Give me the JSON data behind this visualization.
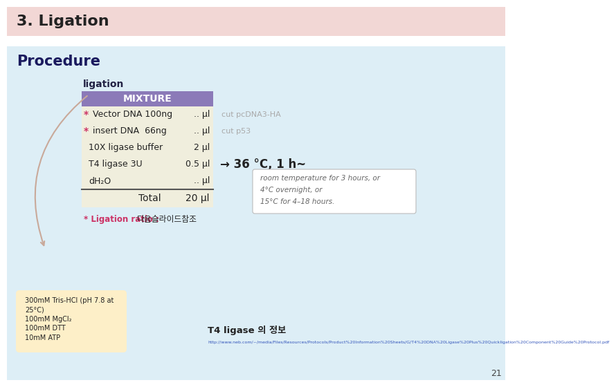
{
  "title": "3. Ligation",
  "title_bg": "#f2d7d5",
  "slide_bg": "#cfe0ed",
  "content_bg": "#ddeef6",
  "section_title": "Procedure",
  "ligation_label": "ligation",
  "mixture_header": "MIXTURE",
  "mixture_header_bg": "#8b7ab8",
  "mixture_header_color": "#ffffff",
  "table_bg": "#f0eedd",
  "table_rows": [
    [
      "* Vector DNA 100ng",
      ".. μl"
    ],
    [
      "* insert DNA  66ng",
      ".. μl"
    ],
    [
      "10X ligase buffer",
      "2 μl"
    ],
    [
      "T4 ligase 3U",
      "0.5 μl"
    ],
    [
      "dH₂O",
      ".. μl"
    ]
  ],
  "total_label": "Total",
  "total_value": "20 μl",
  "ligation_ratio_pink": "* Ligation ratio : ",
  "ligation_ratio_black": "다음슬라이드참조",
  "cut_labels": [
    "cut pcDNA3-HA",
    "cut p53"
  ],
  "arrow_text": "→ 36 °C, 1 h~",
  "info_box_lines": [
    "room temperature for 3 hours, or",
    "4°C overnight, or",
    "15°C for 4–18 hours."
  ],
  "buffer_box_lines": [
    "300mM Tris-HCl (pH 7.8 at",
    "25°C)",
    "100mM MgCl₂",
    "100mM DTT",
    "10mM ATP"
  ],
  "t4_ligase_title": "T4 ligase 의 정보",
  "url_text": "http://www.neb.com/~/media/Files/Resources/Protocols/Product%20Information%20Sheets/G/T4%20DNA%20Ligase%20Plus%20Quickligation%20Component%20Guide%20Protocol.pdf",
  "page_number": "21",
  "star_color": "#cc3366",
  "cut_label_color": "#aaaaaa",
  "section_title_color": "#1a1a5e",
  "ligation_label_color": "#222244",
  "arrow_color": "#222222",
  "title_font_color": "#222222"
}
